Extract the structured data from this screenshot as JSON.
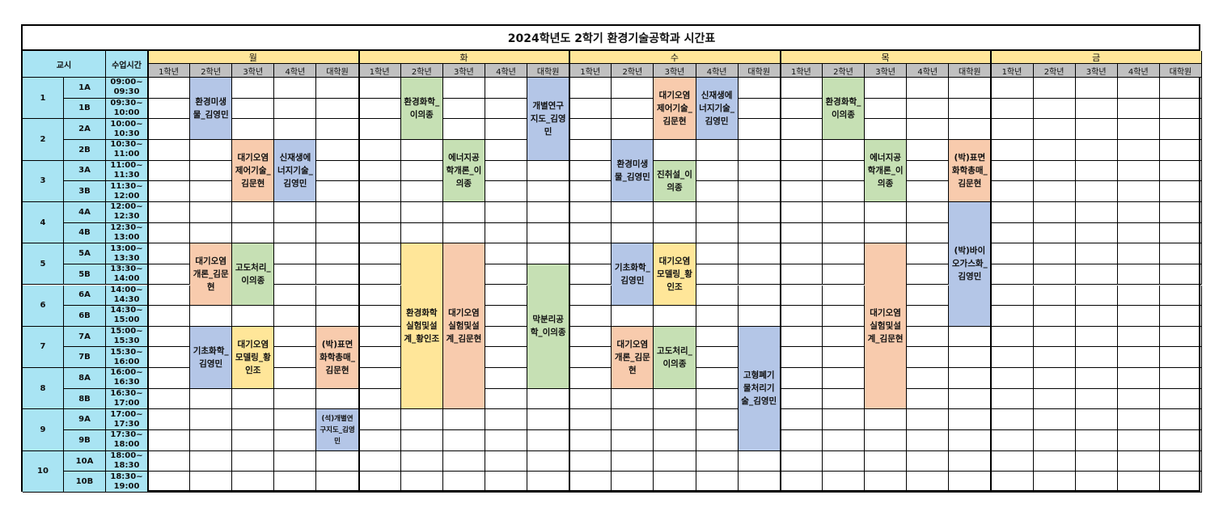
{
  "title": "2024학년도 2학기 환경기술공학과 시간표",
  "header": {
    "period": "교시",
    "time": "수업시간"
  },
  "days": [
    "월",
    "화",
    "수",
    "목",
    "금"
  ],
  "grades": [
    "1학년",
    "2학년",
    "3학년",
    "4학년",
    "대학원"
  ],
  "periods": [
    {
      "num": "1",
      "slots": [
        {
          "code": "1A",
          "time": "09:00~ 09:30"
        },
        {
          "code": "1B",
          "time": "09:30~ 10:00"
        }
      ]
    },
    {
      "num": "2",
      "slots": [
        {
          "code": "2A",
          "time": "10:00~ 10:30"
        },
        {
          "code": "2B",
          "time": "10:30~ 11:00"
        }
      ]
    },
    {
      "num": "3",
      "slots": [
        {
          "code": "3A",
          "time": "11:00~ 11:30"
        },
        {
          "code": "3B",
          "time": "11:30~ 12:00"
        }
      ]
    },
    {
      "num": "4",
      "slots": [
        {
          "code": "4A",
          "time": "12:00~ 12:30"
        },
        {
          "code": "4B",
          "time": "12:30~ 13:00"
        }
      ]
    },
    {
      "num": "5",
      "slots": [
        {
          "code": "5A",
          "time": "13:00~ 13:30"
        },
        {
          "code": "5B",
          "time": "13:30~ 14:00"
        }
      ]
    },
    {
      "num": "6",
      "slots": [
        {
          "code": "6A",
          "time": "14:00~ 14:30"
        },
        {
          "code": "6B",
          "time": "14:30~ 15:00"
        }
      ]
    },
    {
      "num": "7",
      "slots": [
        {
          "code": "7A",
          "time": "15:00~ 15:30"
        },
        {
          "code": "7B",
          "time": "15:30~ 16:00"
        }
      ]
    },
    {
      "num": "8",
      "slots": [
        {
          "code": "8A",
          "time": "16:00~ 16:30"
        },
        {
          "code": "8B",
          "time": "16:30~ 17:00"
        }
      ]
    },
    {
      "num": "9",
      "slots": [
        {
          "code": "9A",
          "time": "17:00~ 17:30"
        },
        {
          "code": "9B",
          "time": "17:30~ 18:00"
        }
      ]
    },
    {
      "num": "10",
      "slots": [
        {
          "code": "10A",
          "time": "18:00~ 18:30"
        },
        {
          "code": "10B",
          "time": "18:30~ 19:00"
        }
      ]
    }
  ],
  "colors": {
    "blue": "#b4c6e7",
    "orange": "#f8cbad",
    "green": "#c6e0b4",
    "yellow": "#ffe699"
  },
  "courses": [
    {
      "day": "월",
      "grade": "2학년",
      "start": "1A",
      "end": "2A",
      "label": "환경미생물_김영민",
      "color": "blue"
    },
    {
      "day": "월",
      "grade": "3학년",
      "start": "2B",
      "end": "3B",
      "label": "대기오염제어기술_김문현",
      "color": "orange"
    },
    {
      "day": "월",
      "grade": "4학년",
      "start": "2B",
      "end": "3B",
      "label": "신재생에너지기술_김영민",
      "color": "blue"
    },
    {
      "day": "월",
      "grade": "2학년",
      "start": "5A",
      "end": "6A",
      "label": "대기오염개론_김문현",
      "color": "orange"
    },
    {
      "day": "월",
      "grade": "3학년",
      "start": "5A",
      "end": "6A",
      "label": "고도처리_이의종",
      "color": "green"
    },
    {
      "day": "월",
      "grade": "2학년",
      "start": "7A",
      "end": "8A",
      "label": "기초화학_김영민",
      "color": "blue"
    },
    {
      "day": "월",
      "grade": "3학년",
      "start": "7A",
      "end": "8A",
      "label": "대기오염모델링_황인조",
      "color": "yellow"
    },
    {
      "day": "월",
      "grade": "대학원",
      "start": "7A",
      "end": "8A",
      "label": "(박)표면화학총매_김문현",
      "color": "orange"
    },
    {
      "day": "월",
      "grade": "대학원",
      "start": "9A",
      "end": "9B",
      "label": "(석)개별연구지도_김영민",
      "color": "blue",
      "small": true
    },
    {
      "day": "화",
      "grade": "2학년",
      "start": "1A",
      "end": "2A",
      "label": "환경화학_이의종",
      "color": "green"
    },
    {
      "day": "화",
      "grade": "대학원",
      "start": "1A",
      "end": "2B",
      "label": "개별연구지도_김영민",
      "color": "blue"
    },
    {
      "day": "화",
      "grade": "3학년",
      "start": "2B",
      "end": "3B",
      "label": "에너지공학개론_이의종",
      "color": "green"
    },
    {
      "day": "화",
      "grade": "2학년",
      "start": "5A",
      "end": "8B",
      "label": "환경화학실험및설계_황인조",
      "color": "yellow"
    },
    {
      "day": "화",
      "grade": "3학년",
      "start": "5A",
      "end": "8B",
      "label": "대기오염실험및설계_김문현",
      "color": "orange"
    },
    {
      "day": "화",
      "grade": "대학원",
      "start": "5B",
      "end": "8A",
      "label": "막분리공학_이의종",
      "color": "green"
    },
    {
      "day": "수",
      "grade": "3학년",
      "start": "1A",
      "end": "2A",
      "label": "대기오염제어기술_김문현",
      "color": "orange"
    },
    {
      "day": "수",
      "grade": "4학년",
      "start": "1A",
      "end": "2A",
      "label": "신재생에너지기술_김영민",
      "color": "blue"
    },
    {
      "day": "수",
      "grade": "2학년",
      "start": "2B",
      "end": "3B",
      "label": "환경미생물_김영민",
      "color": "blue"
    },
    {
      "day": "수",
      "grade": "3학년",
      "start": "3A",
      "end": "3B",
      "label": "진취설_이의종",
      "color": "green"
    },
    {
      "day": "수",
      "grade": "2학년",
      "start": "5A",
      "end": "6A",
      "label": "기초화학_김영민",
      "color": "blue"
    },
    {
      "day": "수",
      "grade": "3학년",
      "start": "5A",
      "end": "6A",
      "label": "대기오염모델링_황인조",
      "color": "yellow"
    },
    {
      "day": "수",
      "grade": "2학년",
      "start": "7A",
      "end": "8A",
      "label": "대기오염개론_김문현",
      "color": "orange"
    },
    {
      "day": "수",
      "grade": "3학년",
      "start": "7A",
      "end": "8A",
      "label": "고도처리_이의종",
      "color": "green"
    },
    {
      "day": "수",
      "grade": "대학원",
      "start": "7A",
      "end": "9B",
      "label": "고형폐기물처리기술_김영민",
      "color": "blue"
    },
    {
      "day": "목",
      "grade": "2학년",
      "start": "1A",
      "end": "2A",
      "label": "환경화학_이의종",
      "color": "green"
    },
    {
      "day": "목",
      "grade": "3학년",
      "start": "2B",
      "end": "3B",
      "label": "에너지공학개론_이의종",
      "color": "green"
    },
    {
      "day": "목",
      "grade": "대학원",
      "start": "2B",
      "end": "3B",
      "label": "(박)표면화학총매_김문현",
      "color": "orange"
    },
    {
      "day": "목",
      "grade": "대학원",
      "start": "4A",
      "end": "6B",
      "label": "(박)바이오가스화_김영민",
      "color": "blue"
    },
    {
      "day": "목",
      "grade": "3학년",
      "start": "5A",
      "end": "8B",
      "label": "대기오염실험및설계_김문현",
      "color": "orange"
    }
  ]
}
